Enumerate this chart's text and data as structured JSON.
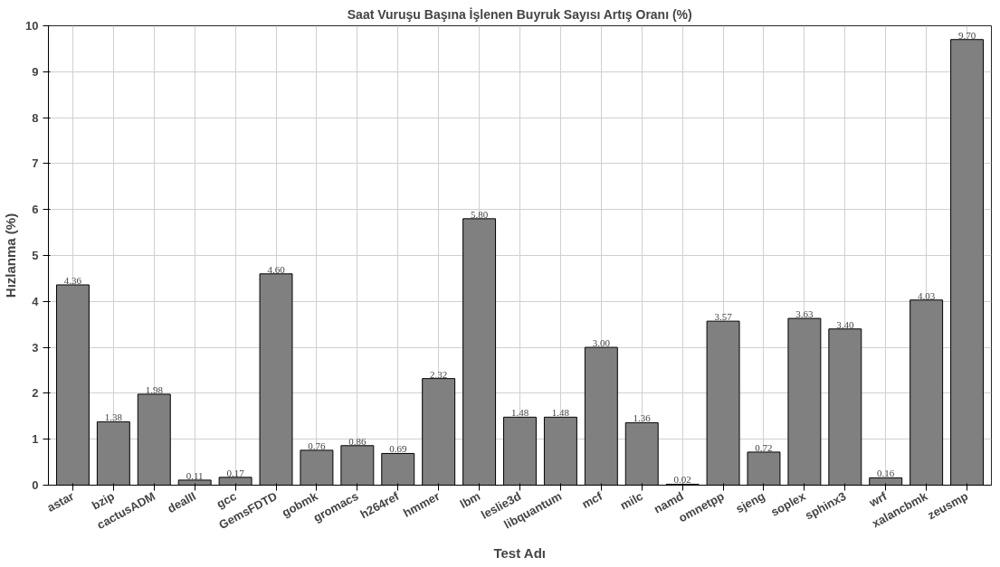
{
  "chart_data": {
    "type": "bar",
    "title": "Saat Vuruşu Başına İşlenen Buyruk Sayısı Artış Oranı (%)",
    "xlabel": "Test Adı",
    "ylabel": "Hızlanma (%)",
    "categories": [
      "astar",
      "bzip",
      "cactusADM",
      "dealII",
      "gcc",
      "GemsFDTD",
      "gobmk",
      "gromacs",
      "h264ref",
      "hmmer",
      "lbm",
      "leslie3d",
      "libquantum",
      "mcf",
      "milc",
      "namd",
      "omnetpp",
      "sjeng",
      "soplex",
      "sphinx3",
      "wrf",
      "xalancbmk",
      "zeusmp"
    ],
    "values": [
      4.36,
      1.38,
      1.98,
      0.11,
      0.17,
      4.6,
      0.76,
      0.86,
      0.69,
      2.32,
      5.8,
      1.48,
      1.48,
      3.0,
      1.36,
      0.02,
      3.57,
      0.72,
      3.63,
      3.4,
      0.16,
      4.03,
      9.7
    ],
    "value_labels": [
      "4.36",
      "1.38",
      "1.98",
      "0.11",
      "0.17",
      "4.60",
      "0.76",
      "0.86",
      "0.69",
      "2.32",
      "5.80",
      "1.48",
      "1.48",
      "3.00",
      "1.36",
      "0.02",
      "3.57",
      "0.72",
      "3.63",
      "3.40",
      "0.16",
      "4.03",
      "9.70"
    ],
    "color": "#808080",
    "ylim": [
      0,
      10
    ],
    "yticks": [
      0,
      1,
      2,
      3,
      4,
      5,
      6,
      7,
      8,
      9,
      10
    ],
    "grid": true
  }
}
